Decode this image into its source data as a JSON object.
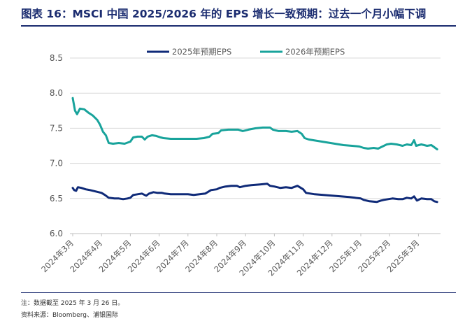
{
  "title": "图表 16：MSCI 中国 2025/2026 年的 EPS 增长一致预期：过去一个月小幅下调",
  "note": "注：数据截至 2025 年 3 月 26 日。",
  "source": "资料来源：Bloomberg、浦银国际",
  "colors": {
    "title": "#1b2c70",
    "eps2025": "#0f2a78",
    "eps2026": "#18a39b",
    "axis": "#595959",
    "grid": "#d9d9d9"
  },
  "chart_data": {
    "type": "line",
    "ylim": [
      6.0,
      8.5
    ],
    "yticks": [
      "6.0",
      "6.5",
      "7.0",
      "7.5",
      "8.0",
      "8.5"
    ],
    "grid": true,
    "legend_position": "top",
    "x_tick_labels": [
      "2024年3月",
      "2024年4月",
      "2024年5月",
      "2024年6月",
      "2024年7月",
      "2024年8月",
      "2024年9月",
      "2024年10月",
      "2024年11月",
      "2024年12月",
      "2025年1月",
      "2025年2月",
      "2025年3月"
    ],
    "series": [
      {
        "name": "2025年预期EPS",
        "color": "#0f2a78",
        "points": [
          [
            0.0,
            6.65
          ],
          [
            0.05,
            6.62
          ],
          [
            0.12,
            6.61
          ],
          [
            0.18,
            6.66
          ],
          [
            0.3,
            6.65
          ],
          [
            0.45,
            6.63
          ],
          [
            0.6,
            6.62
          ],
          [
            0.8,
            6.6
          ],
          [
            1.0,
            6.58
          ],
          [
            1.12,
            6.55
          ],
          [
            1.25,
            6.51
          ],
          [
            1.45,
            6.5
          ],
          [
            1.6,
            6.5
          ],
          [
            1.75,
            6.49
          ],
          [
            1.9,
            6.5
          ],
          [
            2.0,
            6.51
          ],
          [
            2.1,
            6.55
          ],
          [
            2.25,
            6.56
          ],
          [
            2.4,
            6.57
          ],
          [
            2.55,
            6.54
          ],
          [
            2.65,
            6.57
          ],
          [
            2.8,
            6.59
          ],
          [
            2.95,
            6.58
          ],
          [
            3.1,
            6.58
          ],
          [
            3.2,
            6.57
          ],
          [
            3.4,
            6.56
          ],
          [
            3.6,
            6.56
          ],
          [
            3.8,
            6.56
          ],
          [
            4.0,
            6.56
          ],
          [
            4.2,
            6.55
          ],
          [
            4.4,
            6.56
          ],
          [
            4.6,
            6.57
          ],
          [
            4.8,
            6.62
          ],
          [
            5.0,
            6.63
          ],
          [
            5.1,
            6.65
          ],
          [
            5.3,
            6.67
          ],
          [
            5.5,
            6.68
          ],
          [
            5.7,
            6.68
          ],
          [
            5.8,
            6.66
          ],
          [
            6.0,
            6.68
          ],
          [
            6.2,
            6.69
          ],
          [
            6.5,
            6.7
          ],
          [
            6.75,
            6.71
          ],
          [
            6.85,
            6.68
          ],
          [
            7.0,
            6.67
          ],
          [
            7.2,
            6.65
          ],
          [
            7.4,
            6.66
          ],
          [
            7.6,
            6.65
          ],
          [
            7.8,
            6.68
          ],
          [
            8.0,
            6.63
          ],
          [
            8.1,
            6.58
          ],
          [
            8.4,
            6.56
          ],
          [
            8.7,
            6.55
          ],
          [
            9.0,
            6.54
          ],
          [
            9.3,
            6.53
          ],
          [
            9.6,
            6.52
          ],
          [
            9.8,
            6.51
          ],
          [
            10.0,
            6.5
          ],
          [
            10.1,
            6.48
          ],
          [
            10.3,
            6.46
          ],
          [
            10.55,
            6.45
          ],
          [
            10.7,
            6.47
          ],
          [
            10.8,
            6.48
          ],
          [
            10.95,
            6.49
          ],
          [
            11.1,
            6.5
          ],
          [
            11.3,
            6.49
          ],
          [
            11.45,
            6.49
          ],
          [
            11.6,
            6.51
          ],
          [
            11.75,
            6.5
          ],
          [
            11.85,
            6.53
          ],
          [
            11.95,
            6.47
          ],
          [
            12.1,
            6.5
          ],
          [
            12.3,
            6.49
          ],
          [
            12.45,
            6.49
          ],
          [
            12.55,
            6.46
          ],
          [
            12.65,
            6.45
          ]
        ]
      },
      {
        "name": "2026年预期EPS",
        "color": "#18a39b",
        "points": [
          [
            0.0,
            7.93
          ],
          [
            0.08,
            7.75
          ],
          [
            0.15,
            7.7
          ],
          [
            0.25,
            7.78
          ],
          [
            0.4,
            7.77
          ],
          [
            0.55,
            7.72
          ],
          [
            0.7,
            7.68
          ],
          [
            0.85,
            7.62
          ],
          [
            0.95,
            7.55
          ],
          [
            1.05,
            7.45
          ],
          [
            1.15,
            7.4
          ],
          [
            1.25,
            7.29
          ],
          [
            1.4,
            7.28
          ],
          [
            1.6,
            7.29
          ],
          [
            1.8,
            7.28
          ],
          [
            2.0,
            7.31
          ],
          [
            2.1,
            7.37
          ],
          [
            2.25,
            7.38
          ],
          [
            2.4,
            7.38
          ],
          [
            2.5,
            7.34
          ],
          [
            2.6,
            7.38
          ],
          [
            2.75,
            7.4
          ],
          [
            2.9,
            7.39
          ],
          [
            3.05,
            7.37
          ],
          [
            3.15,
            7.36
          ],
          [
            3.4,
            7.35
          ],
          [
            3.7,
            7.35
          ],
          [
            4.0,
            7.35
          ],
          [
            4.3,
            7.35
          ],
          [
            4.55,
            7.36
          ],
          [
            4.75,
            7.38
          ],
          [
            4.85,
            7.42
          ],
          [
            5.05,
            7.43
          ],
          [
            5.15,
            7.47
          ],
          [
            5.4,
            7.48
          ],
          [
            5.6,
            7.48
          ],
          [
            5.75,
            7.48
          ],
          [
            5.9,
            7.46
          ],
          [
            6.1,
            7.48
          ],
          [
            6.35,
            7.5
          ],
          [
            6.6,
            7.51
          ],
          [
            6.85,
            7.51
          ],
          [
            6.95,
            7.48
          ],
          [
            7.15,
            7.46
          ],
          [
            7.4,
            7.46
          ],
          [
            7.6,
            7.45
          ],
          [
            7.8,
            7.46
          ],
          [
            7.95,
            7.42
          ],
          [
            8.05,
            7.36
          ],
          [
            8.2,
            7.34
          ],
          [
            8.5,
            7.32
          ],
          [
            8.8,
            7.3
          ],
          [
            9.1,
            7.28
          ],
          [
            9.4,
            7.26
          ],
          [
            9.7,
            7.25
          ],
          [
            9.95,
            7.24
          ],
          [
            10.1,
            7.22
          ],
          [
            10.25,
            7.21
          ],
          [
            10.45,
            7.22
          ],
          [
            10.6,
            7.21
          ],
          [
            10.75,
            7.24
          ],
          [
            10.9,
            7.27
          ],
          [
            11.05,
            7.28
          ],
          [
            11.25,
            7.27
          ],
          [
            11.45,
            7.25
          ],
          [
            11.6,
            7.27
          ],
          [
            11.75,
            7.26
          ],
          [
            11.85,
            7.33
          ],
          [
            11.92,
            7.25
          ],
          [
            12.1,
            7.27
          ],
          [
            12.3,
            7.25
          ],
          [
            12.45,
            7.26
          ],
          [
            12.55,
            7.23
          ],
          [
            12.65,
            7.2
          ]
        ]
      }
    ]
  }
}
